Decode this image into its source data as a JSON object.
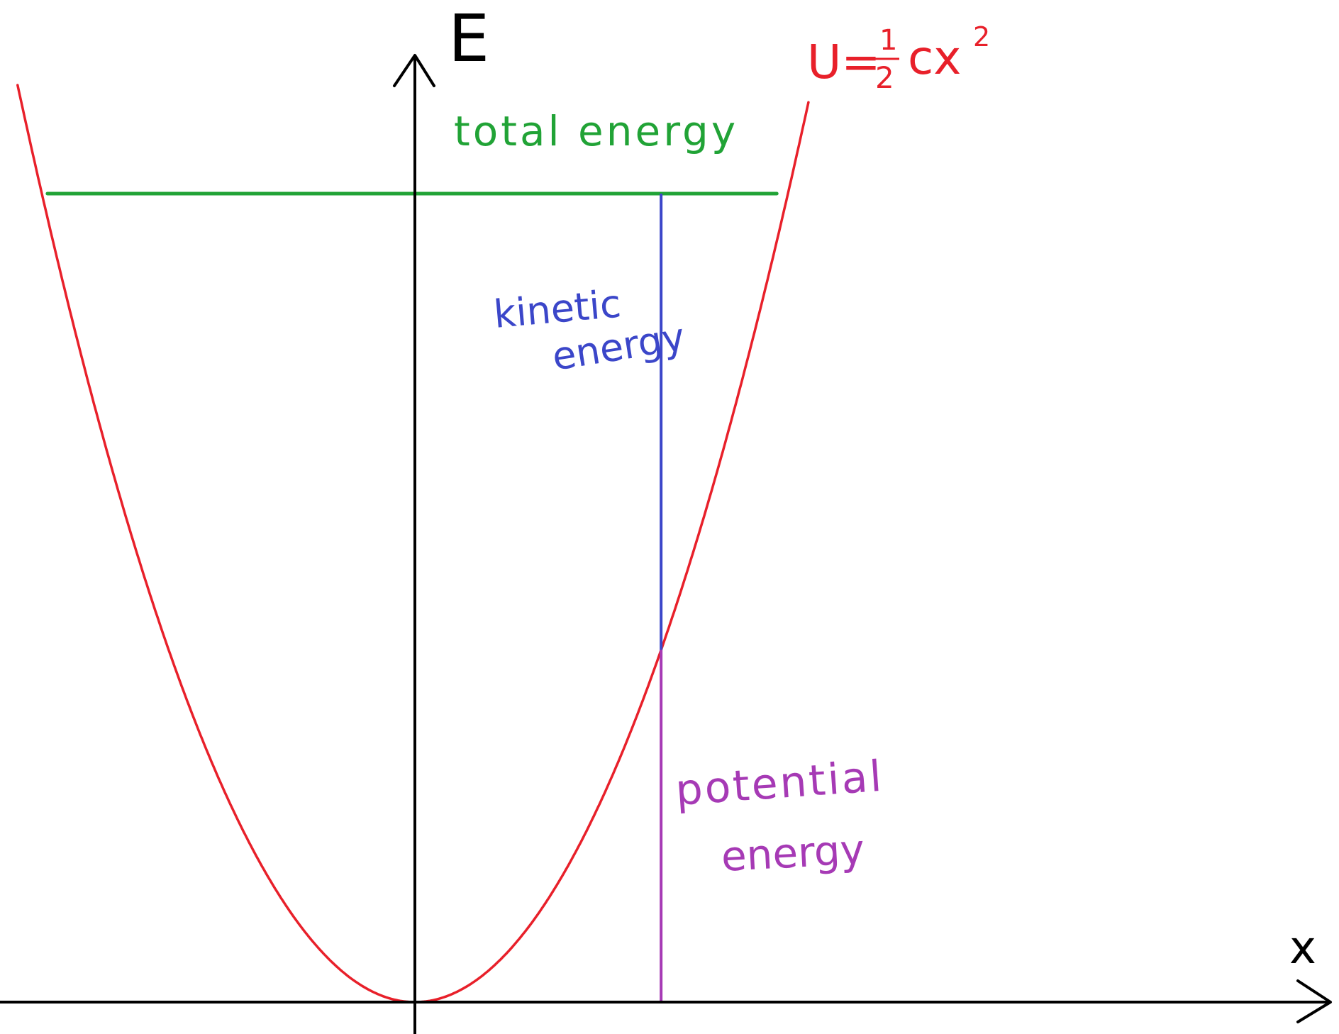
{
  "diagram": {
    "axes": {
      "y_label": "E",
      "x_label": "x"
    },
    "potential_label": {
      "prefix": "U=",
      "numerator": "1",
      "denominator": "2",
      "tail": "cx",
      "exponent": "2"
    },
    "labels": {
      "total_energy": "total energy",
      "kinetic_line1": "kinetic",
      "kinetic_line2": "energy",
      "potential_line1": "potential",
      "potential_line2": "energy"
    },
    "values": {
      "total_energy": 1.0,
      "sample_position": 0.66,
      "turning_point": 1.0
    },
    "colors": {
      "potential_curve": "#e8202a",
      "total_energy": "#21a336",
      "kinetic_energy": "#3b46c9",
      "potential_energy": "#a63ab5",
      "axes": "#000000",
      "background": "#ffffff"
    }
  }
}
